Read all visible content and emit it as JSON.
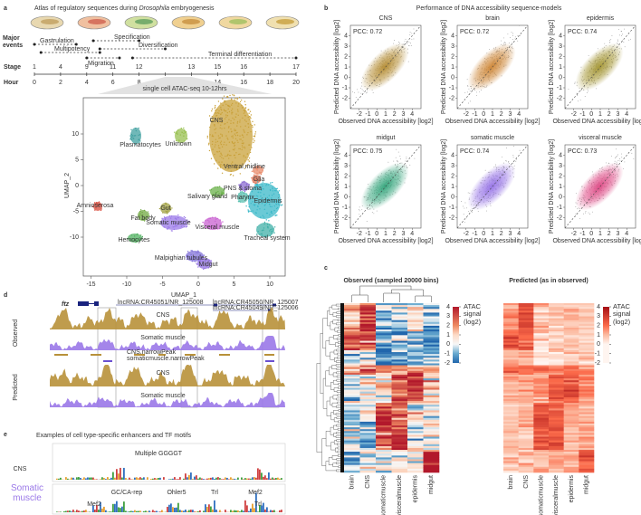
{
  "a": {
    "label": "a",
    "title_parts": [
      "Atlas of regulatory sequences during ",
      "Drosophila",
      " embryogenesis"
    ],
    "events_label": "Major events",
    "events": [
      "Gastrulation",
      "Multipotency",
      "Migration",
      "Specification",
      "Diversification",
      "Terminal differentiation"
    ],
    "stage_label": "Stage",
    "stages": [
      1,
      4,
      9,
      11,
      12,
      13,
      15,
      16,
      17
    ],
    "hour_label": "Hour",
    "hours": [
      0,
      2,
      4,
      6,
      8,
      10,
      12,
      14,
      16,
      18,
      20
    ],
    "zoom_label": "single cell ATAC-seq 10-12hrs",
    "umap": {
      "xlabel": "UMAP_1",
      "ylabel": "UMAP_2",
      "xticks": [
        -15,
        -10,
        -5,
        0,
        5,
        10
      ],
      "yticks": [
        10,
        5,
        0,
        -5,
        -10
      ],
      "clusters": [
        "CNS",
        "Ventral midline",
        "Glia",
        "PNS & stoma",
        "Salivary gland",
        "Epidermis",
        "Pharynx",
        "Tracheal system",
        "Plasmatocytes",
        "Unknown",
        "Amnioserosa",
        "Fat body",
        "Gut",
        "Somatic muscle",
        "Visceral muscle",
        "Hemocytes",
        "Malpighian tubules",
        "Midgut"
      ]
    }
  },
  "b": {
    "label": "b",
    "title": "Performance of DNA accessibility sequence-models",
    "xlabel": "Observed DNA accessibility [log2]",
    "ylabel": "Predicted DNA accessibility [log2]",
    "xticks": [
      -2,
      -1,
      0,
      1,
      2,
      3,
      4
    ],
    "yticks": [
      -2,
      -1,
      0,
      1,
      2,
      3,
      4
    ],
    "panels": [
      {
        "name": "CNS",
        "pcc": "PCC: 0.72",
        "color": "#b8913a"
      },
      {
        "name": "brain",
        "pcc": "PCC: 0.72",
        "color": "#d08a3c"
      },
      {
        "name": "epidermis",
        "pcc": "PCC: 0.74",
        "color": "#a89a3a"
      },
      {
        "name": "midgut",
        "pcc": "PCC: 0.75",
        "color": "#3aa880"
      },
      {
        "name": "somatic muscle",
        "pcc": "PCC: 0.74",
        "color": "#9a78e8"
      },
      {
        "name": "visceral muscle",
        "pcc": "PCC: 0.73",
        "color": "#e0508a"
      }
    ]
  },
  "c": {
    "label": "c",
    "observed_title": "Observed (sampled 20000 bins)",
    "predicted_title": "Predicted (as in observed)",
    "colorbar_label": "ATAC signal (log2)",
    "colorbar_ticks": [
      4,
      3,
      2,
      1,
      0,
      -1,
      -2
    ],
    "columns": [
      "brain",
      "CNS",
      "somaticmuscle",
      "visceralmuscle",
      "epidermis",
      "midgut"
    ]
  },
  "d": {
    "label": "d",
    "gene": "ftz",
    "transcripts": [
      "lncRNA:CR45051/NR_125008",
      "lncRNA:CR45050/NR_125007",
      "lncRNA:CR45049/NR_125006"
    ],
    "peak_tracks": [
      "CNS.narrowPeak",
      "somaticmuscle.narrowPeak"
    ],
    "groups": [
      "Observed",
      "Predicted"
    ],
    "tracks": [
      "CNS",
      "Somatic muscle"
    ]
  },
  "e": {
    "label": "e",
    "title": "Examples of cell type-specific enhancers and TF motifs",
    "rows": [
      {
        "name": "CNS",
        "motifs": [
          "Multiple GGGGT"
        ]
      },
      {
        "name": "Somatic muscle",
        "motifs": [
          "GC/CA-rep",
          "Ohler5",
          "Trl",
          "Mef2",
          "Mef2",
          "Trl"
        ]
      }
    ]
  }
}
